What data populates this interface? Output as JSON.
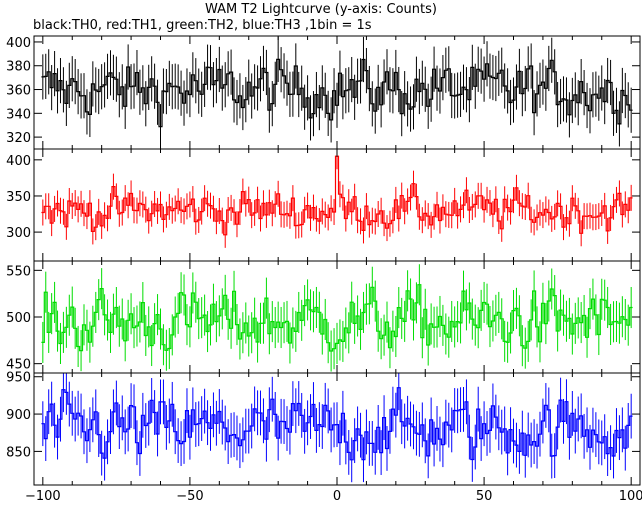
{
  "chart_data": {
    "type": "line",
    "title": "WAM T2 Lightcurve (y-axis: Counts)",
    "subtitle": "black:TH0, red:TH1, green:TH2, blue:TH3 ,1bin = 1s",
    "xlim": [
      -103,
      103
    ],
    "xticks": [
      -100,
      -50,
      0,
      50,
      100
    ],
    "xtick_labels": [
      "−100",
      "−50",
      "0",
      "50",
      "100"
    ],
    "panels": [
      {
        "series": "TH0",
        "color": "#000000",
        "ylim": [
          310,
          405
        ],
        "yticks": [
          320,
          340,
          360,
          380,
          400
        ],
        "y_labels": [
          "320",
          "340",
          "360",
          "380",
          "400"
        ],
        "mean": 360,
        "sigma": 15,
        "error": 19,
        "spike": null
      },
      {
        "series": "TH1",
        "color": "#ff0000",
        "ylim": [
          260,
          415
        ],
        "yticks": [
          300,
          350,
          400
        ],
        "y_labels": [
          "300",
          "350",
          "400"
        ],
        "mean": 330,
        "sigma": 18,
        "error": 18,
        "spike": [
          0,
          405
        ]
      },
      {
        "series": "TH2",
        "color": "#00dd00",
        "ylim": [
          440,
          560
        ],
        "yticks": [
          450,
          500,
          550
        ],
        "y_labels": [
          "450",
          "500",
          "550"
        ],
        "mean": 495,
        "sigma": 22,
        "error": 22,
        "spike": null
      },
      {
        "series": "TH3",
        "color": "#0000ff",
        "ylim": [
          805,
          955
        ],
        "yticks": [
          850,
          900,
          950
        ],
        "y_labels": [
          "850",
          "900",
          "950"
        ],
        "mean": 880,
        "sigma": 28,
        "error": 30,
        "spike": null
      }
    ]
  }
}
